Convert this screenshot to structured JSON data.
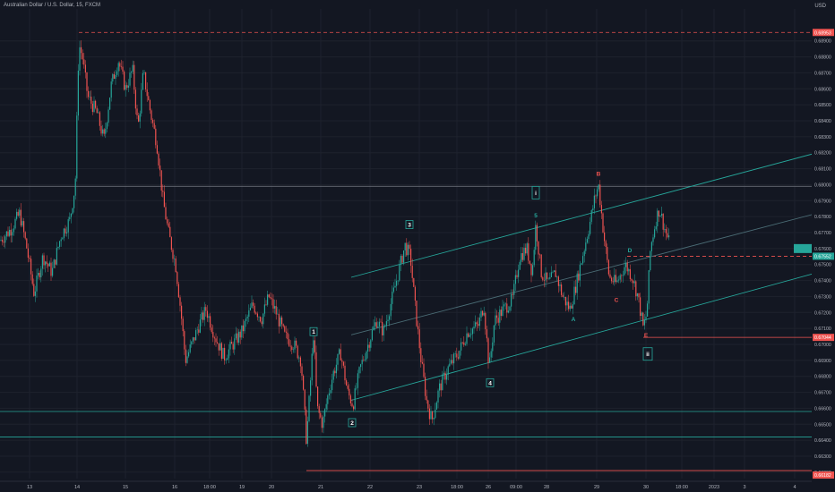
{
  "header": {
    "title": "Australian Dollar / U.S. Dollar, 15, FXCM",
    "currency": "USD"
  },
  "chart_data": {
    "type": "candlestick",
    "instrument": "Australian Dollar / U.S. Dollar",
    "interval": "15",
    "source": "FXCM",
    "ylim": [
      0.6616,
      0.691
    ],
    "y_ticks": [
      "0.68900",
      "0.68800",
      "0.68700",
      "0.68600",
      "0.68500",
      "0.68400",
      "0.68300",
      "0.68200",
      "0.68100",
      "0.68000",
      "0.67900",
      "0.67800",
      "0.67700",
      "0.67600",
      "0.67500",
      "0.67400",
      "0.67300",
      "0.67200",
      "0.67100",
      "0.67000",
      "0.66900",
      "0.66800",
      "0.66700",
      "0.66600",
      "0.66500",
      "0.66400",
      "0.66300",
      "0.66200"
    ],
    "x_ticks": [
      "13",
      "14",
      "15",
      "16",
      "18:00",
      "19",
      "20",
      "21",
      "22",
      "23",
      "18:00",
      "26",
      "09:00",
      "28",
      "29",
      "30",
      "18:00",
      "2023",
      "3",
      "4"
    ],
    "price_labels": [
      {
        "value": "0.68953",
        "color": "#ef5350"
      },
      {
        "value": "0.67552",
        "color": "#26a69a"
      },
      {
        "value": "0.67044",
        "color": "#ef5350"
      },
      {
        "value": "0.66182",
        "color": "#ef5350"
      }
    ],
    "path": [
      [
        0,
        0.6765
      ],
      [
        12,
        0.6772
      ],
      [
        22,
        0.6782
      ],
      [
        30,
        0.676
      ],
      [
        38,
        0.6732
      ],
      [
        48,
        0.6755
      ],
      [
        58,
        0.6745
      ],
      [
        68,
        0.6768
      ],
      [
        78,
        0.6778
      ],
      [
        84,
        0.68
      ],
      [
        88,
        0.6888
      ],
      [
        92,
        0.688
      ],
      [
        98,
        0.6855
      ],
      [
        108,
        0.6845
      ],
      [
        116,
        0.6828
      ],
      [
        124,
        0.6862
      ],
      [
        132,
        0.6878
      ],
      [
        140,
        0.686
      ],
      [
        148,
        0.6872
      ],
      [
        154,
        0.6835
      ],
      [
        160,
        0.687
      ],
      [
        168,
        0.6845
      ],
      [
        175,
        0.6826
      ],
      [
        182,
        0.679
      ],
      [
        188,
        0.677
      ],
      [
        196,
        0.675
      ],
      [
        202,
        0.672
      ],
      [
        207,
        0.669
      ],
      [
        214,
        0.67
      ],
      [
        222,
        0.6712
      ],
      [
        230,
        0.6722
      ],
      [
        240,
        0.6705
      ],
      [
        250,
        0.6692
      ],
      [
        260,
        0.67
      ],
      [
        270,
        0.6708
      ],
      [
        282,
        0.6725
      ],
      [
        292,
        0.6716
      ],
      [
        300,
        0.673
      ],
      [
        308,
        0.672
      ],
      [
        318,
        0.6705
      ],
      [
        328,
        0.67
      ],
      [
        336,
        0.669
      ],
      [
        342,
        0.664
      ],
      [
        346,
        0.6672
      ],
      [
        350,
        0.6708
      ],
      [
        354,
        0.666
      ],
      [
        360,
        0.665
      ],
      [
        366,
        0.6668
      ],
      [
        372,
        0.6682
      ],
      [
        380,
        0.6695
      ],
      [
        388,
        0.667
      ],
      [
        394,
        0.6662
      ],
      [
        402,
        0.6685
      ],
      [
        412,
        0.6702
      ],
      [
        420,
        0.6715
      ],
      [
        428,
        0.6708
      ],
      [
        436,
        0.6725
      ],
      [
        446,
        0.6748
      ],
      [
        452,
        0.6762
      ],
      [
        458,
        0.6755
      ],
      [
        464,
        0.672
      ],
      [
        470,
        0.669
      ],
      [
        476,
        0.6665
      ],
      [
        482,
        0.6652
      ],
      [
        490,
        0.6672
      ],
      [
        500,
        0.6685
      ],
      [
        512,
        0.6695
      ],
      [
        522,
        0.6708
      ],
      [
        534,
        0.6712
      ],
      [
        540,
        0.6725
      ],
      [
        546,
        0.6685
      ],
      [
        552,
        0.6715
      ],
      [
        562,
        0.6722
      ],
      [
        572,
        0.6728
      ],
      [
        580,
        0.6755
      ],
      [
        588,
        0.676
      ],
      [
        594,
        0.6745
      ],
      [
        598,
        0.6775
      ],
      [
        604,
        0.6745
      ],
      [
        612,
        0.6738
      ],
      [
        620,
        0.6745
      ],
      [
        628,
        0.673
      ],
      [
        636,
        0.6722
      ],
      [
        642,
        0.6735
      ],
      [
        650,
        0.6755
      ],
      [
        658,
        0.6775
      ],
      [
        664,
        0.6792
      ],
      [
        668,
        0.68
      ],
      [
        674,
        0.6768
      ],
      [
        680,
        0.6742
      ],
      [
        688,
        0.6738
      ],
      [
        698,
        0.675
      ],
      [
        706,
        0.6742
      ],
      [
        712,
        0.673
      ],
      [
        718,
        0.671
      ],
      [
        722,
        0.672
      ],
      [
        726,
        0.676
      ],
      [
        732,
        0.6778
      ],
      [
        736,
        0.6785
      ],
      [
        742,
        0.6772
      ],
      [
        748,
        0.6762
      ]
    ],
    "channels": [
      {
        "points": [
          [
            392,
            0.6742
          ],
          [
            932,
            0.6823
          ]
        ],
        "color": "#26a69a"
      },
      {
        "points": [
          [
            392,
            0.6665
          ],
          [
            932,
            0.6748
          ]
        ],
        "color": "#26a69a"
      },
      {
        "points": [
          [
            392,
            0.6706
          ],
          [
            932,
            0.6785
          ]
        ],
        "color": "#4a6b74"
      }
    ],
    "levels": [
      {
        "value": 0.68953,
        "style": "dashed",
        "color": "#ef5350",
        "from": 88
      },
      {
        "value": 0.6799,
        "style": "solid",
        "color": "#787b86",
        "from": 0
      },
      {
        "value": 0.67552,
        "style": "dashed",
        "color": "#ef5350",
        "from": 700
      },
      {
        "value": 0.67044,
        "style": "solid",
        "color": "#ef5350",
        "from": 718
      },
      {
        "value": 0.6658,
        "style": "solid",
        "color": "#26a69a",
        "from": 0
      },
      {
        "value": 0.6642,
        "style": "solid",
        "color": "#26a69a",
        "from": 0
      },
      {
        "value": 0.6621,
        "style": "solid",
        "color": "#ef5350",
        "from": 342
      }
    ],
    "wave_labels": [
      {
        "text": "1",
        "x": 350,
        "y": 0.6708,
        "boxed": true,
        "color": "#26a69a"
      },
      {
        "text": "2",
        "x": 393,
        "y": 0.6651,
        "boxed": true,
        "color": "#26a69a"
      },
      {
        "text": "3",
        "x": 457,
        "y": 0.6775,
        "boxed": true,
        "color": "#26a69a"
      },
      {
        "text": "4",
        "x": 547,
        "y": 0.6676,
        "boxed": true,
        "color": "#26a69a"
      },
      {
        "text": "5",
        "x": 598,
        "y": 0.6781,
        "boxed": false,
        "color": "#26a69a"
      },
      {
        "text": "i",
        "x": 598,
        "y": 0.6795,
        "boxed": true,
        "color": "#26a69a"
      },
      {
        "text": "A",
        "x": 640,
        "y": 0.6716,
        "boxed": false,
        "color": "#26a69a"
      },
      {
        "text": "B",
        "x": 668,
        "y": 0.6807,
        "boxed": false,
        "color": "#ef5350"
      },
      {
        "text": "C",
        "x": 688,
        "y": 0.6728,
        "boxed": false,
        "color": "#ef5350"
      },
      {
        "text": "D",
        "x": 703,
        "y": 0.6759,
        "boxed": false,
        "color": "#26a69a"
      },
      {
        "text": "E",
        "x": 721,
        "y": 0.6706,
        "boxed": false,
        "color": "#ef5350"
      },
      {
        "text": "ii",
        "x": 723,
        "y": 0.6694,
        "boxed": true,
        "color": "#26a69a"
      }
    ]
  }
}
